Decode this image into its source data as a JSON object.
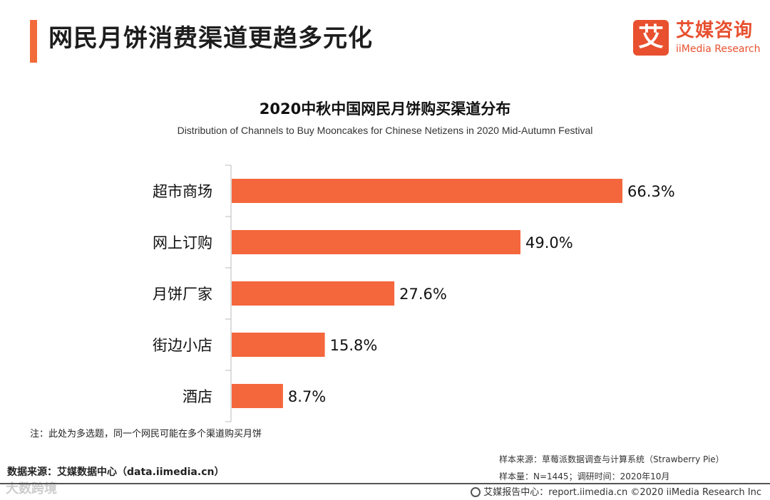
{
  "page_title": "网民月饼消费渠道更趋多元化",
  "logo": {
    "mark": "艾",
    "cn": "艾媒咨询",
    "en": "iiMedia Research"
  },
  "colors": {
    "accent": "#f26b3a",
    "bar": "#f4673d"
  },
  "chart_data": {
    "type": "bar",
    "orientation": "horizontal",
    "title": "2020中秋中国网民月饼购买渠道分布",
    "subtitle": "Distribution of Channels to Buy Mooncakes for Chinese Netizens in 2020 Mid-Autumn Festival",
    "categories": [
      "超市商场",
      "网上订购",
      "月饼厂家",
      "街边小店",
      "酒店"
    ],
    "values": [
      66.3,
      49.0,
      27.6,
      15.8,
      8.7
    ],
    "value_labels": [
      "66.3%",
      "49.0%",
      "27.6%",
      "15.8%",
      "8.7%"
    ],
    "unit": "%",
    "xlim": [
      0,
      70
    ],
    "xlabel": "",
    "ylabel": ""
  },
  "note": "注：此处为多选题，同一个网民可能在多个渠道购买月饼",
  "source": "数据来源：艾媒数据中心（data.iimedia.cn）",
  "sample_source": "样本来源：草莓派数据调查与计算系统（Strawberry Pie）",
  "sample_size": "样本量：N=1445；调研时间：2020年10月",
  "footer": "艾媒报告中心：report.iimedia.cn  ©2020  iiMedia Research  Inc",
  "watermark": "大数跨境"
}
